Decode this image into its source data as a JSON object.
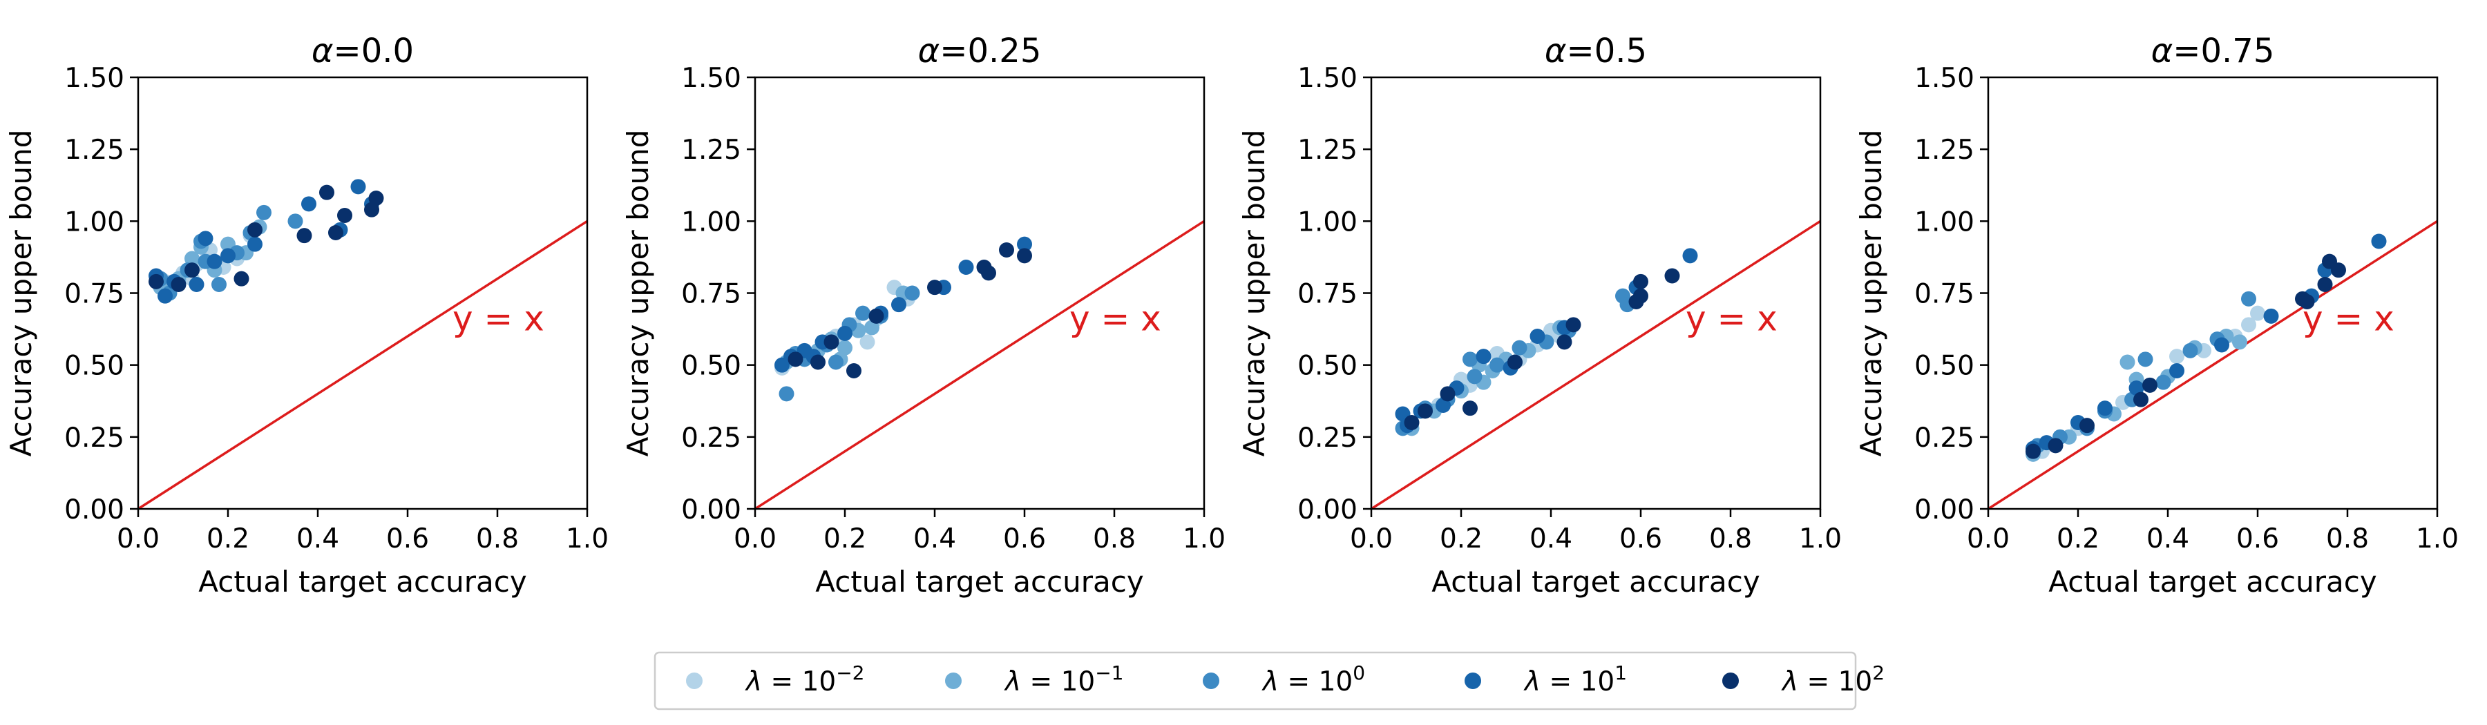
{
  "colors": {
    "identity_line": "#dd1c1c",
    "lambda_0.01": "#b3d3e8",
    "lambda_0.1": "#6faed6",
    "lambda_1": "#3d8ac4",
    "lambda_10": "#1764ab",
    "lambda_100": "#08306b"
  },
  "legend": [
    {
      "symbol": "λ",
      "base": "10",
      "exp": "−2",
      "color_key": "lambda_0.01"
    },
    {
      "symbol": "λ",
      "base": "10",
      "exp": "−1",
      "color_key": "lambda_0.1"
    },
    {
      "symbol": "λ",
      "base": "10",
      "exp": "0",
      "color_key": "lambda_1"
    },
    {
      "symbol": "λ",
      "base": "10",
      "exp": "1",
      "color_key": "lambda_10"
    },
    {
      "symbol": "λ",
      "base": "10",
      "exp": "2",
      "color_key": "lambda_100"
    }
  ],
  "chart_data": [
    {
      "type": "scatter",
      "title_symbol": "α",
      "title_value": "=0.0",
      "xlabel": "Actual target accuracy",
      "ylabel": "Accuracy upper bound",
      "xlim": [
        0,
        1.0
      ],
      "ylim": [
        0,
        1.5
      ],
      "xticks": [
        "0.0",
        "0.2",
        "0.4",
        "0.6",
        "0.8",
        "1.0"
      ],
      "yticks": [
        "0.00",
        "0.25",
        "0.50",
        "0.75",
        "1.00",
        "1.25",
        "1.50"
      ],
      "annotation": "y = x",
      "series": [
        {
          "name": "λ=10^-2",
          "color_key": "lambda_0.01",
          "points": [
            [
              0.06,
              0.79
            ],
            [
              0.1,
              0.82
            ],
            [
              0.13,
              0.85
            ],
            [
              0.16,
              0.9
            ],
            [
              0.19,
              0.84
            ],
            [
              0.22,
              0.87
            ],
            [
              0.25,
              0.95
            ],
            [
              0.12,
              0.8
            ]
          ]
        },
        {
          "name": "λ=10^-1",
          "color_key": "lambda_0.1",
          "points": [
            [
              0.05,
              0.77
            ],
            [
              0.09,
              0.8
            ],
            [
              0.12,
              0.87
            ],
            [
              0.14,
              0.91
            ],
            [
              0.17,
              0.83
            ],
            [
              0.2,
              0.92
            ],
            [
              0.24,
              0.89
            ],
            [
              0.27,
              0.98
            ]
          ]
        },
        {
          "name": "λ=10^0",
          "color_key": "lambda_1",
          "points": [
            [
              0.05,
              0.8
            ],
            [
              0.07,
              0.75
            ],
            [
              0.11,
              0.83
            ],
            [
              0.15,
              0.86
            ],
            [
              0.18,
              0.78
            ],
            [
              0.22,
              0.89
            ],
            [
              0.25,
              0.96
            ],
            [
              0.28,
              1.03
            ],
            [
              0.35,
              1.0
            ],
            [
              0.14,
              0.93
            ]
          ]
        },
        {
          "name": "λ=10^1",
          "color_key": "lambda_10",
          "points": [
            [
              0.04,
              0.81
            ],
            [
              0.06,
              0.74
            ],
            [
              0.08,
              0.79
            ],
            [
              0.13,
              0.78
            ],
            [
              0.15,
              0.94
            ],
            [
              0.2,
              0.88
            ],
            [
              0.26,
              0.92
            ],
            [
              0.38,
              1.06
            ],
            [
              0.45,
              0.97
            ],
            [
              0.52,
              1.06
            ],
            [
              0.49,
              1.12
            ],
            [
              0.17,
              0.86
            ]
          ]
        },
        {
          "name": "λ=10^2",
          "color_key": "lambda_100",
          "points": [
            [
              0.04,
              0.79
            ],
            [
              0.09,
              0.78
            ],
            [
              0.12,
              0.83
            ],
            [
              0.23,
              0.8
            ],
            [
              0.26,
              0.97
            ],
            [
              0.37,
              0.95
            ],
            [
              0.42,
              1.1
            ],
            [
              0.44,
              0.96
            ],
            [
              0.46,
              1.02
            ],
            [
              0.52,
              1.04
            ],
            [
              0.53,
              1.08
            ]
          ]
        }
      ]
    },
    {
      "type": "scatter",
      "title_symbol": "α",
      "title_value": "=0.25",
      "xlabel": "Actual target accuracy",
      "ylabel": "Accuracy upper bound",
      "xlim": [
        0,
        1.0
      ],
      "ylim": [
        0,
        1.5
      ],
      "xticks": [
        "0.0",
        "0.2",
        "0.4",
        "0.6",
        "0.8",
        "1.0"
      ],
      "yticks": [
        "0.00",
        "0.25",
        "0.50",
        "0.75",
        "1.00",
        "1.25",
        "1.50"
      ],
      "annotation": "y = x",
      "series": [
        {
          "name": "λ=10^-2",
          "color_key": "lambda_0.01",
          "points": [
            [
              0.06,
              0.49
            ],
            [
              0.12,
              0.53
            ],
            [
              0.18,
              0.6
            ],
            [
              0.22,
              0.64
            ],
            [
              0.25,
              0.58
            ],
            [
              0.27,
              0.66
            ],
            [
              0.31,
              0.77
            ],
            [
              0.34,
              0.73
            ]
          ]
        },
        {
          "name": "λ=10^-1",
          "color_key": "lambda_0.1",
          "points": [
            [
              0.07,
              0.51
            ],
            [
              0.14,
              0.55
            ],
            [
              0.17,
              0.59
            ],
            [
              0.2,
              0.56
            ],
            [
              0.23,
              0.62
            ],
            [
              0.26,
              0.63
            ],
            [
              0.33,
              0.75
            ],
            [
              0.19,
              0.52
            ]
          ]
        },
        {
          "name": "λ=10^0",
          "color_key": "lambda_1",
          "points": [
            [
              0.07,
              0.4
            ],
            [
              0.11,
              0.52
            ],
            [
              0.16,
              0.57
            ],
            [
              0.18,
              0.51
            ],
            [
              0.21,
              0.64
            ],
            [
              0.24,
              0.68
            ],
            [
              0.28,
              0.67
            ],
            [
              0.35,
              0.75
            ],
            [
              0.09,
              0.54
            ]
          ]
        },
        {
          "name": "λ=10^1",
          "color_key": "lambda_10",
          "points": [
            [
              0.06,
              0.5
            ],
            [
              0.08,
              0.53
            ],
            [
              0.11,
              0.55
            ],
            [
              0.15,
              0.58
            ],
            [
              0.2,
              0.61
            ],
            [
              0.28,
              0.68
            ],
            [
              0.32,
              0.71
            ],
            [
              0.42,
              0.77
            ],
            [
              0.47,
              0.84
            ],
            [
              0.6,
              0.92
            ],
            [
              0.13,
              0.53
            ]
          ]
        },
        {
          "name": "λ=10^2",
          "color_key": "lambda_100",
          "points": [
            [
              0.09,
              0.52
            ],
            [
              0.14,
              0.51
            ],
            [
              0.22,
              0.48
            ],
            [
              0.27,
              0.67
            ],
            [
              0.4,
              0.77
            ],
            [
              0.51,
              0.84
            ],
            [
              0.52,
              0.82
            ],
            [
              0.56,
              0.9
            ],
            [
              0.6,
              0.88
            ],
            [
              0.17,
              0.58
            ]
          ]
        }
      ]
    },
    {
      "type": "scatter",
      "title_symbol": "α",
      "title_value": "=0.5",
      "xlabel": "Actual target accuracy",
      "ylabel": "Accuracy upper bound",
      "xlim": [
        0,
        1.0
      ],
      "ylim": [
        0,
        1.5
      ],
      "xticks": [
        "0.0",
        "0.2",
        "0.4",
        "0.6",
        "0.8",
        "1.0"
      ],
      "yticks": [
        "0.00",
        "0.25",
        "0.50",
        "0.75",
        "1.00",
        "1.25",
        "1.50"
      ],
      "annotation": "y = x",
      "series": [
        {
          "name": "λ=10^-2",
          "color_key": "lambda_0.01",
          "points": [
            [
              0.08,
              0.3
            ],
            [
              0.15,
              0.36
            ],
            [
              0.22,
              0.43
            ],
            [
              0.28,
              0.54
            ],
            [
              0.33,
              0.52
            ],
            [
              0.37,
              0.57
            ],
            [
              0.4,
              0.62
            ],
            [
              0.42,
              0.6
            ],
            [
              0.2,
              0.45
            ]
          ]
        },
        {
          "name": "λ=10^-1",
          "color_key": "lambda_0.1",
          "points": [
            [
              0.09,
              0.28
            ],
            [
              0.14,
              0.34
            ],
            [
              0.2,
              0.41
            ],
            [
              0.24,
              0.5
            ],
            [
              0.27,
              0.48
            ],
            [
              0.3,
              0.52
            ],
            [
              0.35,
              0.55
            ],
            [
              0.42,
              0.63
            ],
            [
              0.25,
              0.44
            ]
          ]
        },
        {
          "name": "λ=10^0",
          "color_key": "lambda_1",
          "points": [
            [
              0.07,
              0.28
            ],
            [
              0.12,
              0.35
            ],
            [
              0.17,
              0.38
            ],
            [
              0.23,
              0.46
            ],
            [
              0.28,
              0.5
            ],
            [
              0.33,
              0.56
            ],
            [
              0.39,
              0.58
            ],
            [
              0.44,
              0.62
            ],
            [
              0.56,
              0.74
            ],
            [
              0.57,
              0.71
            ],
            [
              0.22,
              0.52
            ]
          ]
        },
        {
          "name": "λ=10^1",
          "color_key": "lambda_10",
          "points": [
            [
              0.07,
              0.33
            ],
            [
              0.08,
              0.29
            ],
            [
              0.11,
              0.34
            ],
            [
              0.16,
              0.36
            ],
            [
              0.25,
              0.53
            ],
            [
              0.31,
              0.49
            ],
            [
              0.37,
              0.6
            ],
            [
              0.43,
              0.63
            ],
            [
              0.59,
              0.77
            ],
            [
              0.71,
              0.88
            ],
            [
              0.19,
              0.42
            ]
          ]
        },
        {
          "name": "λ=10^2",
          "color_key": "lambda_100",
          "points": [
            [
              0.09,
              0.3
            ],
            [
              0.12,
              0.34
            ],
            [
              0.17,
              0.4
            ],
            [
              0.22,
              0.35
            ],
            [
              0.32,
              0.51
            ],
            [
              0.43,
              0.58
            ],
            [
              0.45,
              0.64
            ],
            [
              0.59,
              0.72
            ],
            [
              0.6,
              0.79
            ],
            [
              0.6,
              0.74
            ],
            [
              0.67,
              0.81
            ]
          ]
        }
      ]
    },
    {
      "type": "scatter",
      "title_symbol": "α",
      "title_value": "=0.75",
      "xlabel": "Actual target accuracy",
      "ylabel": "Accuracy upper bound",
      "xlim": [
        0,
        1.0
      ],
      "ylim": [
        0,
        1.5
      ],
      "xticks": [
        "0.0",
        "0.2",
        "0.4",
        "0.6",
        "0.8",
        "1.0"
      ],
      "yticks": [
        "0.00",
        "0.25",
        "0.50",
        "0.75",
        "1.00",
        "1.25",
        "1.50"
      ],
      "annotation": "y = x",
      "series": [
        {
          "name": "λ=10^-2",
          "color_key": "lambda_0.01",
          "points": [
            [
              0.12,
              0.2
            ],
            [
              0.2,
              0.28
            ],
            [
              0.3,
              0.37
            ],
            [
              0.36,
              0.43
            ],
            [
              0.42,
              0.53
            ],
            [
              0.48,
              0.55
            ],
            [
              0.55,
              0.6
            ],
            [
              0.58,
              0.64
            ],
            [
              0.6,
              0.68
            ]
          ]
        },
        {
          "name": "λ=10^-1",
          "color_key": "lambda_0.1",
          "points": [
            [
              0.1,
              0.19
            ],
            [
              0.18,
              0.25
            ],
            [
              0.28,
              0.33
            ],
            [
              0.33,
              0.45
            ],
            [
              0.4,
              0.46
            ],
            [
              0.46,
              0.56
            ],
            [
              0.53,
              0.6
            ],
            [
              0.56,
              0.58
            ],
            [
              0.31,
              0.51
            ]
          ]
        },
        {
          "name": "λ=10^0",
          "color_key": "lambda_1",
          "points": [
            [
              0.11,
              0.22
            ],
            [
              0.16,
              0.25
            ],
            [
              0.22,
              0.28
            ],
            [
              0.26,
              0.34
            ],
            [
              0.32,
              0.38
            ],
            [
              0.39,
              0.44
            ],
            [
              0.45,
              0.55
            ],
            [
              0.51,
              0.59
            ],
            [
              0.58,
              0.73
            ],
            [
              0.35,
              0.52
            ]
          ]
        },
        {
          "name": "λ=10^1",
          "color_key": "lambda_10",
          "points": [
            [
              0.1,
              0.21
            ],
            [
              0.13,
              0.23
            ],
            [
              0.2,
              0.3
            ],
            [
              0.26,
              0.35
            ],
            [
              0.33,
              0.42
            ],
            [
              0.42,
              0.48
            ],
            [
              0.52,
              0.57
            ],
            [
              0.63,
              0.67
            ],
            [
              0.72,
              0.74
            ],
            [
              0.75,
              0.83
            ],
            [
              0.87,
              0.93
            ]
          ]
        },
        {
          "name": "λ=10^2",
          "color_key": "lambda_100",
          "points": [
            [
              0.1,
              0.2
            ],
            [
              0.15,
              0.22
            ],
            [
              0.22,
              0.29
            ],
            [
              0.34,
              0.38
            ],
            [
              0.36,
              0.43
            ],
            [
              0.71,
              0.72
            ],
            [
              0.75,
              0.78
            ],
            [
              0.76,
              0.86
            ],
            [
              0.78,
              0.83
            ],
            [
              0.7,
              0.73
            ]
          ]
        }
      ]
    }
  ]
}
